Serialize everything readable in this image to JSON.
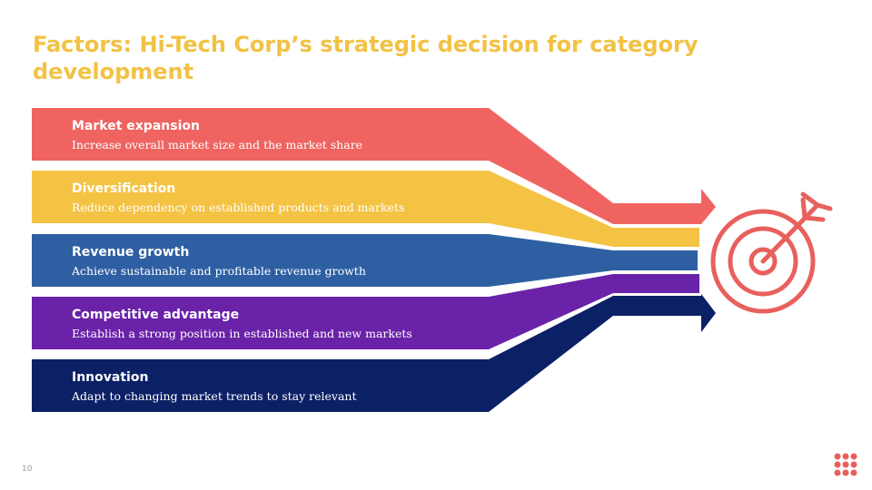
{
  "header": {
    "title_lines": [
      "Factors: Hi-Tech Corp’s strategic decision for category",
      "development"
    ]
  },
  "factors": [
    {
      "title": "Market expansion",
      "description": "Increase overall market size and the market share"
    },
    {
      "title": "Diversification",
      "description": "Reduce dependency on established products and markets"
    },
    {
      "title": "Revenue growth",
      "description": "Achieve sustainable and profitable revenue growth"
    },
    {
      "title": "Competitive advantage",
      "description": "Establish a strong position in established and new markets"
    },
    {
      "title": "Innovation",
      "description": "Adapt to changing market trends to stay relevant"
    }
  ],
  "footer": {
    "page_number": "10"
  }
}
